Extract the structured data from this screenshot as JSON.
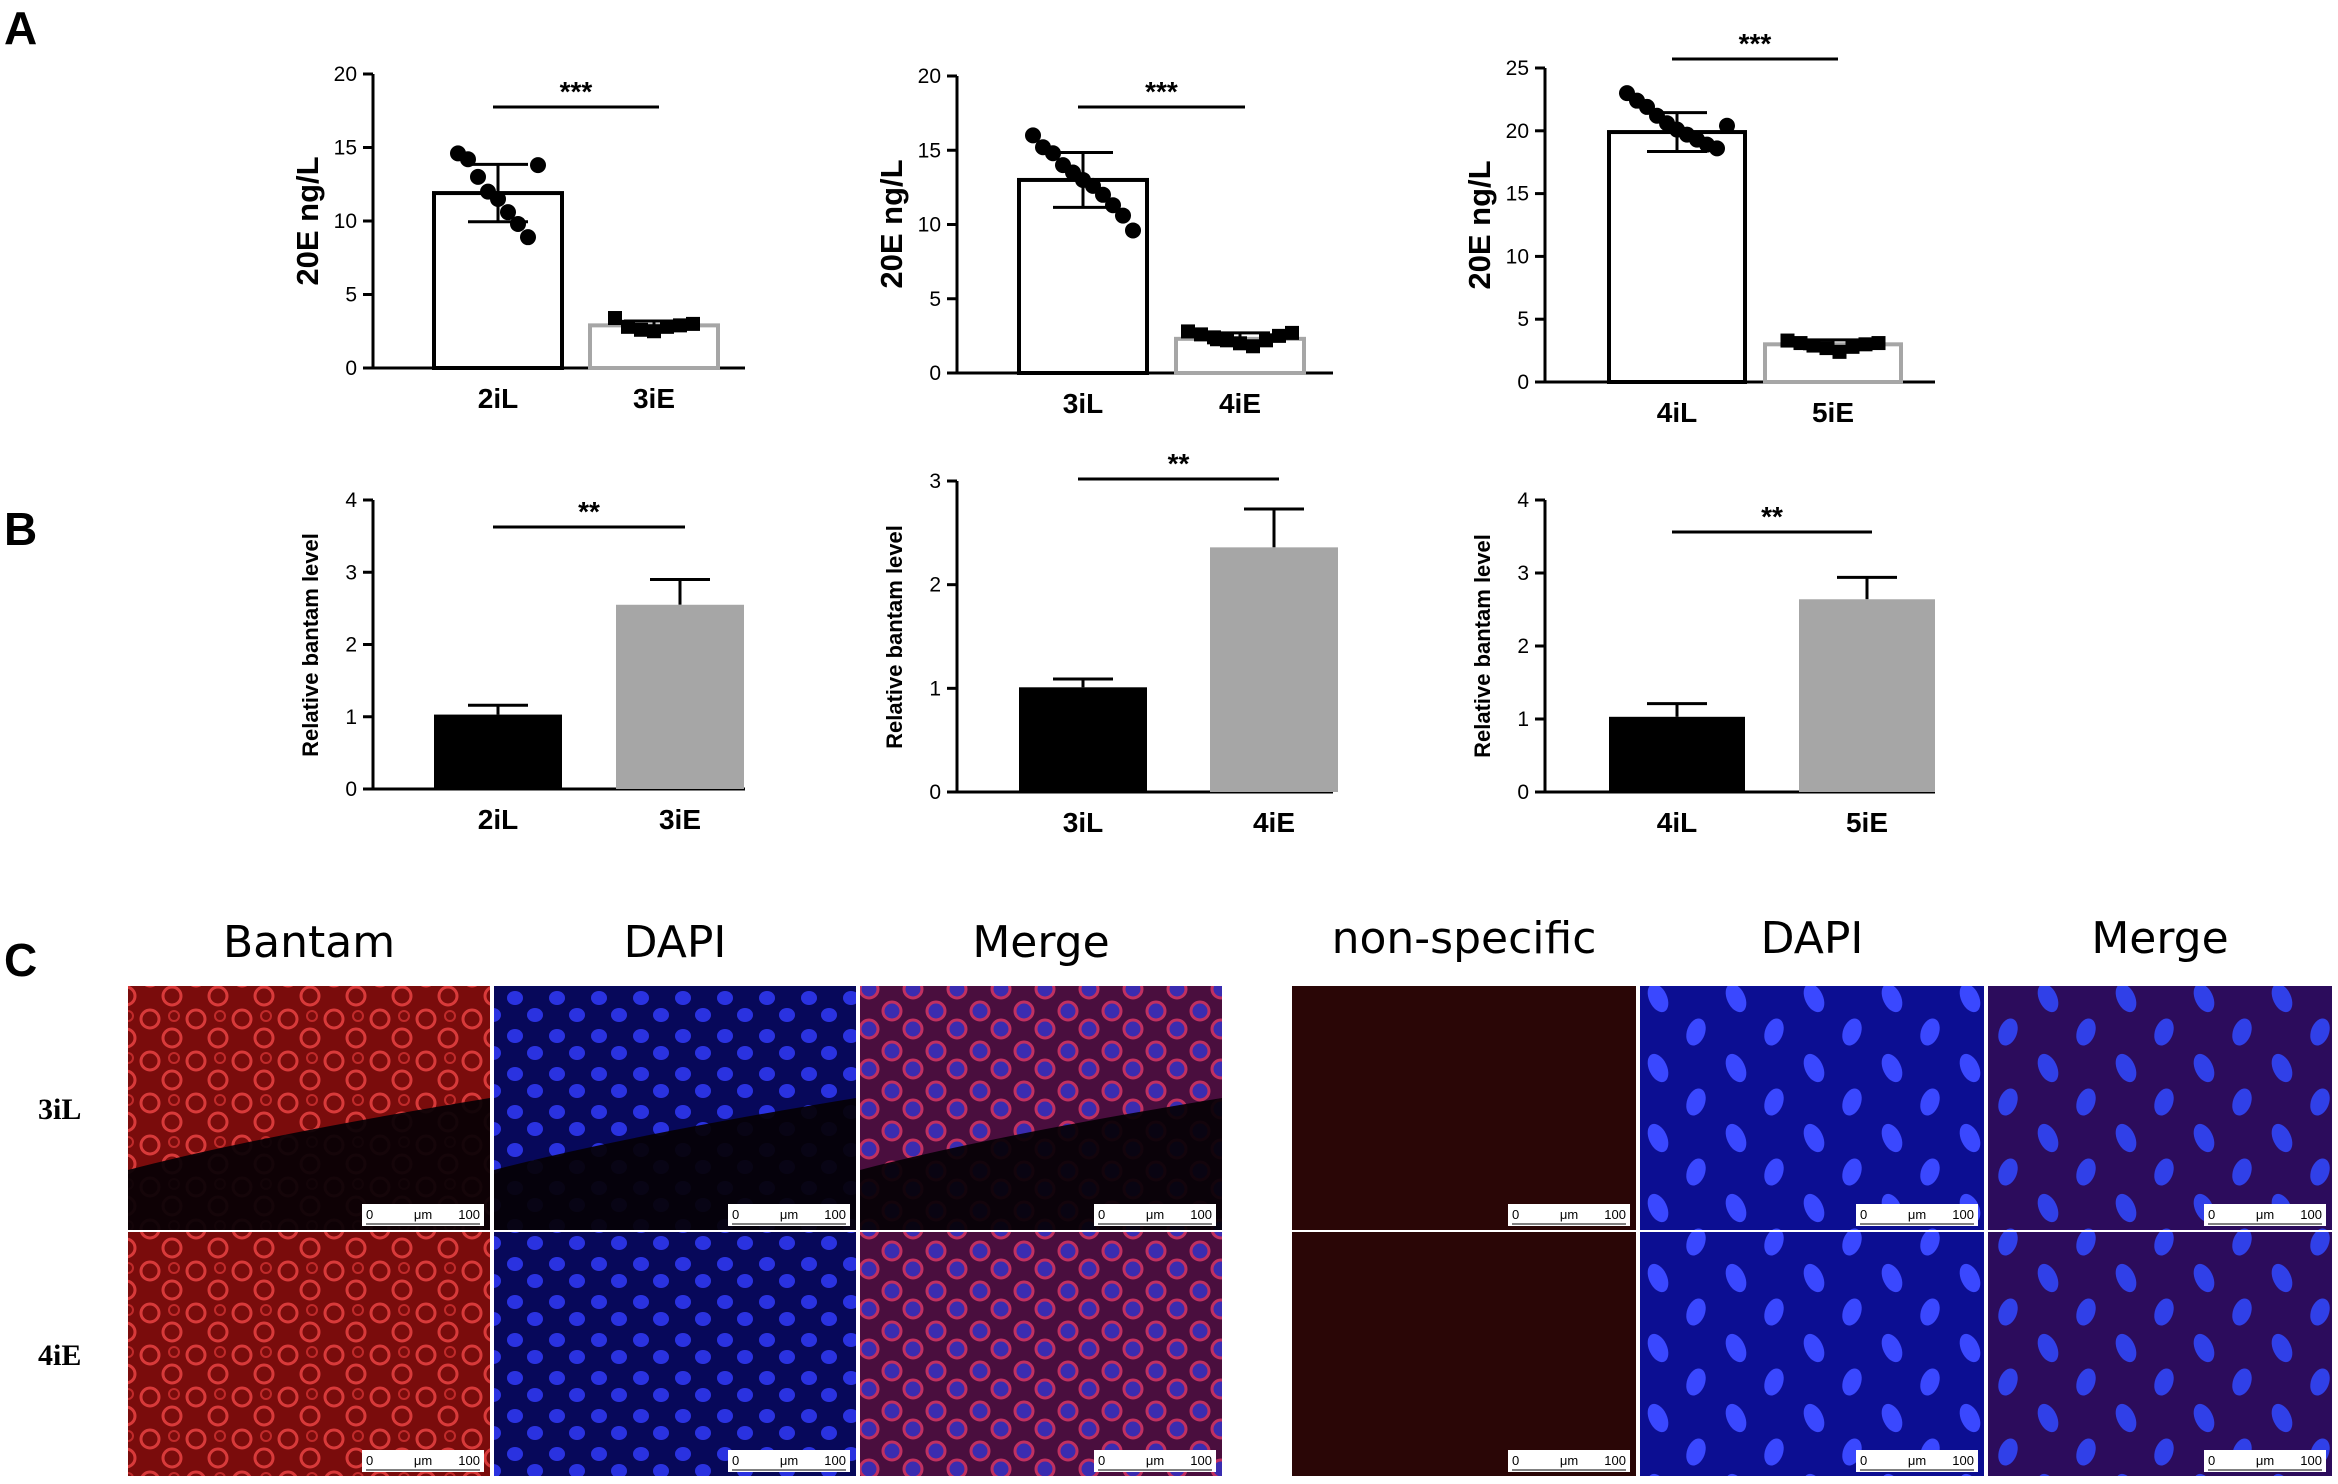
{
  "panel_labels": {
    "a": "A",
    "b": "B",
    "c": "C"
  },
  "colors": {
    "black_bar": "#000000",
    "grey_bar": "#a6a6a6",
    "red_stain": "#a01818",
    "blue_stain": "#1a1fc8",
    "merge": "#5a1c78",
    "dark_red": "#2a0606"
  },
  "chart_data": [
    {
      "type": "bar",
      "panel": "A",
      "ylabel": "20E ng/L",
      "ylim": [
        0,
        20
      ],
      "yticks": [
        "0",
        "5",
        "10",
        "15",
        "20"
      ],
      "categories": [
        "2iL",
        "3iE"
      ],
      "values": [
        11.9,
        2.9
      ],
      "errors": [
        1.95,
        0.3
      ],
      "bar_style": [
        "open-black",
        "open-grey"
      ],
      "points": [
        [
          14.6,
          14.2,
          13.0,
          12.0,
          11.5,
          10.6,
          9.8,
          8.9,
          13.8
        ],
        [
          3.4,
          2.8,
          2.6,
          2.5,
          2.8,
          2.9,
          3.0
        ]
      ],
      "significance": "***"
    },
    {
      "type": "bar",
      "panel": "A",
      "ylabel": "20E ng/L",
      "ylim": [
        0,
        20
      ],
      "yticks": [
        "0",
        "5",
        "10",
        "15",
        "20"
      ],
      "categories": [
        "3iL",
        "4iE"
      ],
      "values": [
        13.0,
        2.3
      ],
      "errors": [
        1.85,
        0.4
      ],
      "bar_style": [
        "open-black",
        "open-grey"
      ],
      "points": [
        [
          16.0,
          15.2,
          14.8,
          14.0,
          13.5,
          13.0,
          12.6,
          12.0,
          11.3,
          10.6,
          9.6
        ],
        [
          2.8,
          2.6,
          2.4,
          2.2,
          2.0,
          1.8,
          2.2,
          2.5,
          2.7
        ]
      ],
      "significance": "***"
    },
    {
      "type": "bar",
      "panel": "A",
      "ylabel": "20E ng/L",
      "ylim": [
        0,
        25
      ],
      "yticks": [
        "0",
        "5",
        "10",
        "15",
        "20",
        "25"
      ],
      "categories": [
        "4iL",
        "5iE"
      ],
      "values": [
        19.9,
        3.0
      ],
      "errors": [
        1.55,
        0.35
      ],
      "bar_style": [
        "open-black",
        "open-grey"
      ],
      "points": [
        [
          23.0,
          22.4,
          21.9,
          21.2,
          20.6,
          20.1,
          19.7,
          19.3,
          18.9,
          18.6,
          20.4
        ],
        [
          3.3,
          3.1,
          2.9,
          2.7,
          2.4,
          2.8,
          3.0,
          3.1
        ]
      ],
      "significance": "***"
    },
    {
      "type": "bar",
      "panel": "B",
      "ylabel": "Relative bantam level",
      "ylim": [
        0,
        4
      ],
      "yticks": [
        "0",
        "1",
        "2",
        "3",
        "4"
      ],
      "categories": [
        "2iL",
        "3iE"
      ],
      "values": [
        1.03,
        2.55
      ],
      "errors": [
        0.13,
        0.35
      ],
      "bar_style": [
        "solid-black",
        "solid-grey"
      ],
      "significance": "**"
    },
    {
      "type": "bar",
      "panel": "B",
      "ylabel": "Relative bantam level",
      "ylim": [
        0,
        3
      ],
      "yticks": [
        "0",
        "1",
        "2",
        "3"
      ],
      "categories": [
        "3iL",
        "4iE"
      ],
      "values": [
        1.01,
        2.36
      ],
      "errors": [
        0.08,
        0.37
      ],
      "bar_style": [
        "solid-black",
        "solid-grey"
      ],
      "significance": "**"
    },
    {
      "type": "bar",
      "panel": "B",
      "ylabel": "Relative bantam level",
      "ylim": [
        0,
        4
      ],
      "yticks": [
        "0",
        "1",
        "2",
        "3",
        "4"
      ],
      "categories": [
        "4iL",
        "5iE"
      ],
      "values": [
        1.03,
        2.64
      ],
      "errors": [
        0.18,
        0.3
      ],
      "bar_style": [
        "solid-black",
        "solid-grey"
      ],
      "significance": "**"
    }
  ],
  "panel_c": {
    "left_columns": [
      "Bantam",
      "DAPI",
      "Merge"
    ],
    "right_columns": [
      "non-specific",
      "DAPI",
      "Merge"
    ],
    "rows": [
      "3iL",
      "4iE"
    ],
    "scale_bar": {
      "start": "0",
      "unit": "μm",
      "end": "100"
    },
    "image_types": [
      "red",
      "blue",
      "merge",
      "dark-red",
      "blue-sparse",
      "merge-sparse"
    ]
  }
}
